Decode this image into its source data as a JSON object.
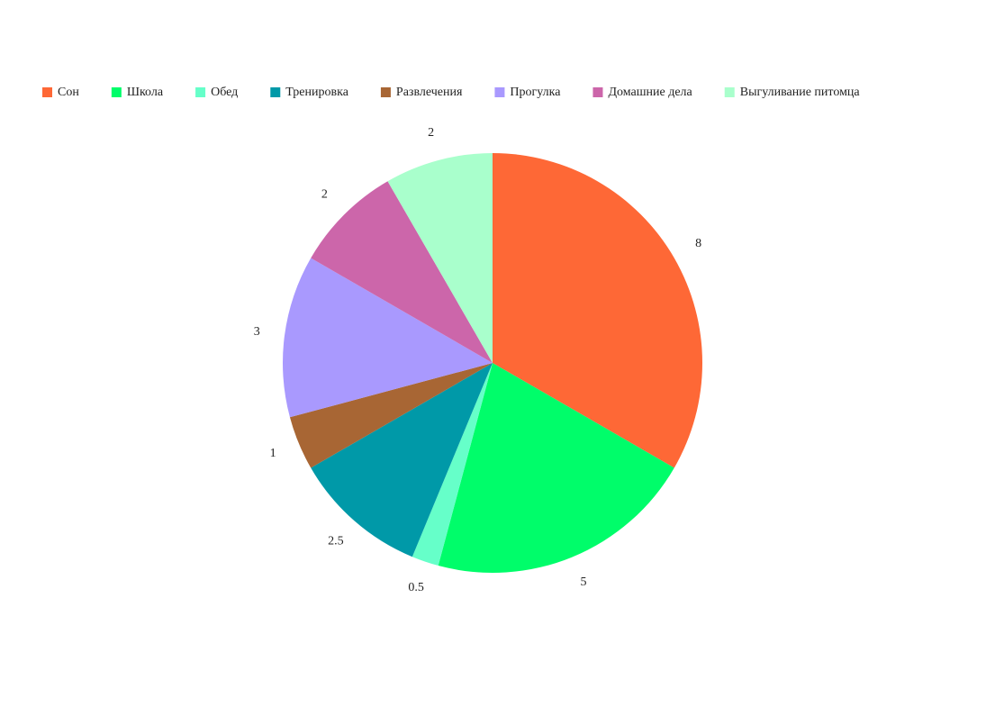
{
  "chart_data": {
    "type": "pie",
    "categories": [
      "Сон",
      "Школа",
      "Обед",
      "Тренировка",
      "Развлечения",
      "Прогулка",
      "Домашние дела",
      "Выгуливание питомца"
    ],
    "values": [
      8,
      5,
      0.5,
      2.5,
      1,
      3,
      2,
      2
    ],
    "colors": [
      "#fe6836",
      "#00fd6a",
      "#66ffc9",
      "#0099a8",
      "#a86634",
      "#a999fe",
      "#cc66aa",
      "#a9ffcc"
    ],
    "legend": "top"
  }
}
